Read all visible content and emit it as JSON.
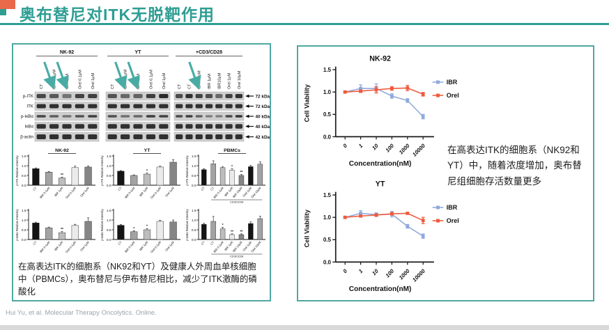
{
  "header": {
    "title": "奥布替尼对ITK无脱靶作用"
  },
  "footer": {
    "citation": "Hui Yu, et al. Molecular Therapy Oncolytics. Online."
  },
  "colors": {
    "accent_teal": "#2e9e94",
    "accent_orange": "#e96a4b",
    "panel_border": "#4fa8a0",
    "arrow_teal": "#49aca4",
    "ibr_blue": "#8fa9dc",
    "orel_orange": "#f05a3c"
  },
  "left_panel": {
    "blot": {
      "groups": [
        {
          "name": "NK-92",
          "lanes": [
            "CT",
            "IBR 0.1 μM",
            "IBR 1μM",
            "Orel 0.1μM",
            "Orel 1μM"
          ],
          "arrow_lanes": [
            1,
            2
          ],
          "key": "nk92"
        },
        {
          "name": "YT",
          "lanes": [
            "CT",
            "IBR 0.1 μM",
            "IBR 1μM",
            "Orel 0.1μM",
            "Orel 1μM"
          ],
          "arrow_lanes": [
            1,
            2
          ],
          "key": "yt"
        },
        {
          "name": "+CD3/CD28",
          "lanes": [
            "CT",
            "CT",
            "IBR 0.1μM",
            "IBR 1μM",
            "IBR10μM",
            "Orel 1μM",
            "Orel 10μM"
          ],
          "arrow_lanes": [
            2
          ],
          "key": "pbmcs"
        }
      ],
      "rows": [
        {
          "label": "p-ITK",
          "kda": "72 kDa"
        },
        {
          "label": "ITK",
          "kda": "72 kDa"
        },
        {
          "label": "p-IκBα",
          "kda": "40 kDa"
        },
        {
          "label": "IκBα",
          "kda": "40 kDa"
        },
        {
          "label": "β-actin",
          "kda": "42 kDa"
        }
      ]
    },
    "caption": "在高表达ITK的细胞系（NK92和YT）及健康人外周血单核细胞中（PBMCs），奥布替尼与伊布替尼相比，减少了ITK激酶的磷酸化"
  },
  "right_panel": {
    "caption": "在高表达ITK的细胞系（NK92和YT）中，随着浓度增加，奥布替尼组细胞存活数量更多"
  },
  "chart_data": [
    {
      "id": "pitk_nk92",
      "type": "bar",
      "title": "NK-92",
      "ylabel": "p-ITK Relative Intensity",
      "ylim": [
        0,
        1.5
      ],
      "yticks": [
        0.0,
        0.5,
        1.0,
        1.5
      ],
      "categories": [
        "CT",
        "IBR 0.1μM",
        "IBR 1μM",
        "Orel 0.1μM",
        "Orel 1μM"
      ],
      "values": [
        0.85,
        0.67,
        0.37,
        0.9,
        0.93
      ],
      "errors": [
        0.04,
        0.03,
        0.04,
        0.08,
        0.06
      ],
      "sig": [
        "",
        "",
        "**",
        "",
        ""
      ],
      "bar_colors": [
        "#141414",
        "#a3a3a3",
        "#bdbdbd",
        "#ebebeb",
        "#858585"
      ]
    },
    {
      "id": "pitk_yt",
      "type": "bar",
      "title": "YT",
      "ylabel": "p-ITK Relative Intensity",
      "ylim": [
        0,
        1.5
      ],
      "yticks": [
        0.0,
        0.5,
        1.0,
        1.5
      ],
      "categories": [
        "CT",
        "IBR 0.1μM",
        "IBR 1μM",
        "Orel 0.1μM",
        "Orel 1μM"
      ],
      "values": [
        0.72,
        0.5,
        0.57,
        0.93,
        1.18
      ],
      "errors": [
        0.03,
        0.03,
        0.05,
        0.05,
        0.13
      ],
      "sig": [
        "",
        "",
        "*",
        "",
        ""
      ],
      "bar_colors": [
        "#141414",
        "#a3a3a3",
        "#bdbdbd",
        "#ebebeb",
        "#858585"
      ]
    },
    {
      "id": "pitk_pbmcs",
      "type": "bar",
      "title": "PBMCs",
      "ylabel": "p-ITK Relative Intensity",
      "ylim": [
        0,
        1.5
      ],
      "yticks": [
        0.0,
        0.5,
        1.0,
        1.5
      ],
      "categories": [
        "CT",
        "CT",
        "IBR 0.1μM",
        "IBR 1μM",
        "IBR 10μM",
        "Orel 1μM",
        "Orel 10μM"
      ],
      "values": [
        0.8,
        1.1,
        0.9,
        0.77,
        0.5,
        0.95,
        1.08
      ],
      "errors": [
        0.05,
        0.15,
        0.04,
        0.07,
        0.05,
        0.07,
        0.12
      ],
      "sig": [
        "",
        "",
        "",
        "*",
        "**",
        "",
        ""
      ],
      "bracket": "CD3/CD28",
      "bar_colors": [
        "#141414",
        "#a3a3a3",
        "#bdbdbd",
        "#ebebeb",
        "#858585",
        "#141414",
        "#a3a3a3"
      ]
    },
    {
      "id": "pikba_nk92",
      "type": "bar",
      "title": "",
      "ylabel": "p-IκBα Relative Intensity",
      "ylim": [
        0,
        1.5
      ],
      "yticks": [
        0.0,
        0.5,
        1.0,
        1.5
      ],
      "categories": [
        "CT",
        "IBR 0.1μM",
        "IBR 1μM",
        "Orel 0.1μM",
        "Orel 1μM"
      ],
      "values": [
        0.85,
        0.6,
        0.35,
        0.72,
        0.93
      ],
      "errors": [
        0.04,
        0.04,
        0.06,
        0.06,
        0.18
      ],
      "sig": [
        "",
        "",
        "**",
        "",
        ""
      ],
      "bar_colors": [
        "#141414",
        "#a3a3a3",
        "#bdbdbd",
        "#ebebeb",
        "#858585"
      ]
    },
    {
      "id": "pikba_yt",
      "type": "bar",
      "title": "",
      "ylabel": "p-IκBα Relative Intensity",
      "ylim": [
        0,
        1.5
      ],
      "yticks": [
        0.0,
        0.5,
        1.0,
        1.5
      ],
      "categories": [
        "CT",
        "IBR 0.1μM",
        "IBR 1μM",
        "Orel 0.1μM",
        "Orel 1μM"
      ],
      "values": [
        0.73,
        0.4,
        0.5,
        0.93,
        0.9
      ],
      "errors": [
        0.04,
        0.05,
        0.06,
        0.06,
        0.1
      ],
      "sig": [
        "",
        "*",
        "*",
        "",
        ""
      ],
      "bar_colors": [
        "#141414",
        "#a3a3a3",
        "#bdbdbd",
        "#ebebeb",
        "#858585"
      ]
    },
    {
      "id": "pikba_pbmcs",
      "type": "bar",
      "title": "",
      "ylabel": "p-IκBα Relative Intensity",
      "ylim": [
        0,
        1.5
      ],
      "yticks": [
        0.0,
        0.5,
        1.0,
        1.5
      ],
      "categories": [
        "CT",
        "CT",
        "IBR 0.1μM",
        "IBR 1μM",
        "IBR 10μM",
        "Orel 1μM",
        "Orel 10μM"
      ],
      "values": [
        0.78,
        0.93,
        0.55,
        0.25,
        0.25,
        0.82,
        1.07
      ],
      "errors": [
        0.05,
        0.25,
        0.07,
        0.04,
        0.04,
        0.08,
        0.12
      ],
      "sig": [
        "",
        "",
        "*",
        "**",
        "**",
        "",
        ""
      ],
      "bracket": "CD3/CD28",
      "bar_colors": [
        "#141414",
        "#a3a3a3",
        "#bdbdbd",
        "#ebebeb",
        "#858585",
        "#141414",
        "#a3a3a3"
      ]
    },
    {
      "id": "viability_nk92",
      "type": "line",
      "title": "NK-92",
      "xlabel": "Concentration(nM)",
      "ylabel": "Cell Viability",
      "ylim": [
        0,
        1.5
      ],
      "yticks": [
        0.0,
        0.5,
        1.0,
        1.5
      ],
      "x_categories": [
        "0",
        "1",
        "10",
        "100",
        "1000",
        "10000"
      ],
      "legend_position": "right",
      "series": [
        {
          "name": "IBR",
          "color": "#8fa9dc",
          "values": [
            1.0,
            1.08,
            1.08,
            0.91,
            0.81,
            0.45
          ],
          "errors": [
            0.02,
            0.08,
            0.1,
            0.05,
            0.04,
            0.05
          ]
        },
        {
          "name": "Orel",
          "color": "#f05a3c",
          "values": [
            1.0,
            1.02,
            1.05,
            1.08,
            1.09,
            0.95
          ],
          "errors": [
            0.02,
            0.03,
            0.07,
            0.04,
            0.06,
            0.04
          ]
        }
      ]
    },
    {
      "id": "viability_yt",
      "type": "line",
      "title": "YT",
      "xlabel": "Concentration(nM)",
      "ylabel": "Cell Viability",
      "ylim": [
        0,
        1.5
      ],
      "yticks": [
        0.0,
        0.5,
        1.0,
        1.5
      ],
      "x_categories": [
        "0",
        "1",
        "10",
        "100",
        "1000",
        "10000"
      ],
      "legend_position": "right",
      "series": [
        {
          "name": "IBR",
          "color": "#8fa9dc",
          "values": [
            1.0,
            1.09,
            1.06,
            1.07,
            0.8,
            0.58
          ],
          "errors": [
            0.02,
            0.06,
            0.04,
            0.06,
            0.04,
            0.05
          ]
        },
        {
          "name": "Orel",
          "color": "#f05a3c",
          "values": [
            1.0,
            1.03,
            1.05,
            1.08,
            1.09,
            0.93
          ],
          "errors": [
            0.02,
            0.02,
            0.03,
            0.03,
            0.02,
            0.07
          ]
        }
      ]
    }
  ]
}
